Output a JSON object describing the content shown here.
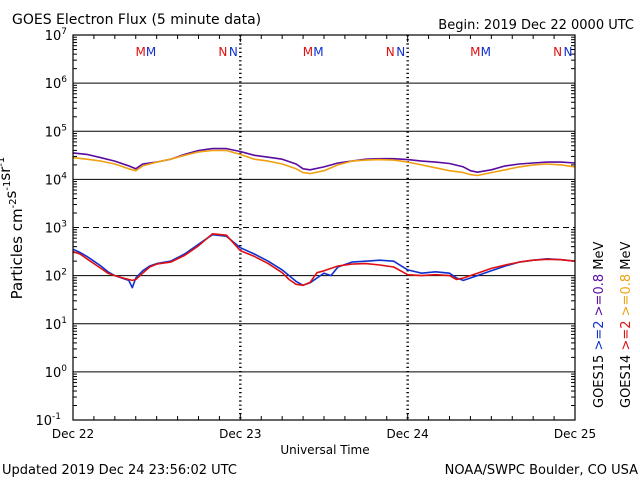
{
  "header": {
    "title": "GOES Electron Flux (5 minute data)",
    "begin": "Begin: 2019 Dec 22 0000 UTC"
  },
  "footer": {
    "updated": "Updated 2019 Dec 24 23:56:02 UTC",
    "credit": "NOAA/SWPC Boulder, CO USA"
  },
  "colors": {
    "goes15_08": "#5a0ba0",
    "goes14_08": "#f0a010",
    "goes15_2": "#1030d0",
    "goes14_2": "#e01010",
    "m_marker": "#e01010",
    "n_marker": "#1030d0"
  },
  "chart_data": {
    "type": "line",
    "title": "GOES Electron Flux (5 minute data)",
    "xlabel": "Universal Time",
    "ylabel": "Particles cm-2s-1sr-1",
    "x_tick_labels": [
      "Dec 22",
      "Dec 23",
      "Dec 24",
      "Dec 25"
    ],
    "xlim": [
      0,
      72
    ],
    "ylim_log10": [
      -1,
      7
    ],
    "y_scale": "log",
    "y_tick_labels": [
      {
        "base": "10",
        "exp": "7"
      },
      {
        "base": "10",
        "exp": "6"
      },
      {
        "base": "10",
        "exp": "5"
      },
      {
        "base": "10",
        "exp": "4"
      },
      {
        "base": "10",
        "exp": "3"
      },
      {
        "base": "10",
        "exp": "2"
      },
      {
        "base": "10",
        "exp": "1"
      },
      {
        "base": "10",
        "exp": "0"
      },
      {
        "base": "10",
        "exp": "-1"
      }
    ],
    "alert_threshold_log10": 3,
    "markers": [
      {
        "text": "M",
        "hour": 9.7,
        "color_key": "m_marker"
      },
      {
        "text": "M",
        "hour": 11.2,
        "color_key": "n_marker"
      },
      {
        "text": "N",
        "hour": 21.5,
        "color_key": "m_marker"
      },
      {
        "text": "N",
        "hour": 23.0,
        "color_key": "n_marker"
      },
      {
        "text": "M",
        "hour": 33.7,
        "color_key": "m_marker"
      },
      {
        "text": "M",
        "hour": 35.2,
        "color_key": "n_marker"
      },
      {
        "text": "N",
        "hour": 45.5,
        "color_key": "m_marker"
      },
      {
        "text": "N",
        "hour": 47.0,
        "color_key": "n_marker"
      },
      {
        "text": "M",
        "hour": 57.7,
        "color_key": "m_marker"
      },
      {
        "text": "M",
        "hour": 59.2,
        "color_key": "n_marker"
      },
      {
        "text": "N",
        "hour": 69.5,
        "color_key": "m_marker"
      },
      {
        "text": "N",
        "hour": 71.0,
        "color_key": "n_marker"
      }
    ],
    "legend": [
      {
        "text": "GOES15",
        "color_key": null
      },
      {
        "text": ">=2",
        "color_key": "goes15_2"
      },
      {
        "text": ">=0.8",
        "color_key": "goes15_08"
      },
      {
        "text": "MeV",
        "color_key": null
      },
      {
        "text": "GOES14",
        "color_key": null
      },
      {
        "text": ">=2",
        "color_key": "goes14_2"
      },
      {
        "text": ">=0.8",
        "color_key": "goes14_08"
      },
      {
        "text": "MeV",
        "color_key": null
      }
    ],
    "series": [
      {
        "color_key": "goes15_08",
        "x": [
          0,
          2,
          4,
          6,
          8,
          9,
          10,
          11,
          12,
          14,
          16,
          18,
          20,
          22,
          24,
          26,
          28,
          30,
          32,
          33,
          34,
          36,
          38,
          40,
          42,
          44,
          46,
          48,
          50,
          52,
          54,
          56,
          57,
          58,
          60,
          62,
          64,
          66,
          68,
          70,
          72
        ],
        "y": [
          4.55,
          4.52,
          4.45,
          4.38,
          4.28,
          4.22,
          4.32,
          4.34,
          4.36,
          4.42,
          4.52,
          4.6,
          4.64,
          4.64,
          4.58,
          4.5,
          4.46,
          4.42,
          4.32,
          4.22,
          4.2,
          4.26,
          4.34,
          4.38,
          4.42,
          4.43,
          4.43,
          4.41,
          4.38,
          4.36,
          4.33,
          4.26,
          4.18,
          4.15,
          4.2,
          4.28,
          4.32,
          4.34,
          4.36,
          4.36,
          4.34
        ]
      },
      {
        "color_key": "goes14_08",
        "x": [
          0,
          2,
          4,
          6,
          8,
          9,
          10,
          11,
          12,
          14,
          16,
          18,
          20,
          22,
          24,
          26,
          28,
          30,
          32,
          33,
          34,
          36,
          38,
          40,
          42,
          44,
          46,
          48,
          50,
          52,
          54,
          56,
          57,
          58,
          60,
          62,
          64,
          66,
          68,
          70,
          72
        ],
        "y": [
          4.45,
          4.42,
          4.38,
          4.32,
          4.22,
          4.18,
          4.28,
          4.32,
          4.36,
          4.42,
          4.5,
          4.57,
          4.6,
          4.6,
          4.52,
          4.42,
          4.38,
          4.32,
          4.22,
          4.14,
          4.12,
          4.18,
          4.3,
          4.38,
          4.4,
          4.41,
          4.4,
          4.36,
          4.3,
          4.24,
          4.18,
          4.14,
          4.1,
          4.08,
          4.14,
          4.2,
          4.26,
          4.3,
          4.32,
          4.3,
          4.26
        ]
      },
      {
        "color_key": "goes15_2",
        "x": [
          0,
          1,
          2,
          3,
          4,
          5,
          6,
          7,
          8,
          8.5,
          9,
          10,
          11,
          12,
          14,
          16,
          18,
          20,
          22,
          24,
          26,
          28,
          30,
          31,
          32,
          33,
          34,
          35,
          36,
          37,
          38,
          40,
          42,
          44,
          46,
          48,
          50,
          52,
          54,
          55,
          56,
          58,
          60,
          62,
          64,
          66,
          68,
          70,
          72
        ],
        "y": [
          2.55,
          2.48,
          2.4,
          2.3,
          2.2,
          2.08,
          2.0,
          1.95,
          1.9,
          1.75,
          1.95,
          2.1,
          2.2,
          2.25,
          2.3,
          2.45,
          2.65,
          2.85,
          2.82,
          2.58,
          2.45,
          2.3,
          2.12,
          2.0,
          1.88,
          1.8,
          1.85,
          1.95,
          2.05,
          2.0,
          2.18,
          2.28,
          2.3,
          2.32,
          2.3,
          2.12,
          2.05,
          2.08,
          2.05,
          1.95,
          1.9,
          2.0,
          2.1,
          2.2,
          2.28,
          2.32,
          2.35,
          2.33,
          2.3
        ]
      },
      {
        "color_key": "goes14_2",
        "x": [
          0,
          1,
          2,
          3,
          4,
          5,
          6,
          7,
          8,
          8.5,
          9,
          10,
          11,
          12,
          14,
          16,
          18,
          20,
          22,
          24,
          26,
          28,
          30,
          31,
          32,
          33,
          34,
          35,
          36,
          37,
          38,
          40,
          42,
          44,
          46,
          48,
          50,
          52,
          54,
          55,
          56,
          58,
          60,
          62,
          64,
          66,
          68,
          70,
          72
        ],
        "y": [
          2.5,
          2.45,
          2.35,
          2.25,
          2.15,
          2.05,
          2.0,
          1.96,
          1.92,
          1.9,
          1.92,
          2.05,
          2.18,
          2.24,
          2.28,
          2.42,
          2.62,
          2.87,
          2.84,
          2.52,
          2.4,
          2.25,
          2.06,
          1.92,
          1.82,
          1.8,
          1.86,
          2.06,
          2.1,
          2.15,
          2.2,
          2.24,
          2.25,
          2.22,
          2.18,
          2.02,
          2.0,
          2.02,
          2.0,
          1.92,
          1.95,
          2.05,
          2.15,
          2.22,
          2.28,
          2.32,
          2.34,
          2.33,
          2.3
        ]
      }
    ]
  }
}
